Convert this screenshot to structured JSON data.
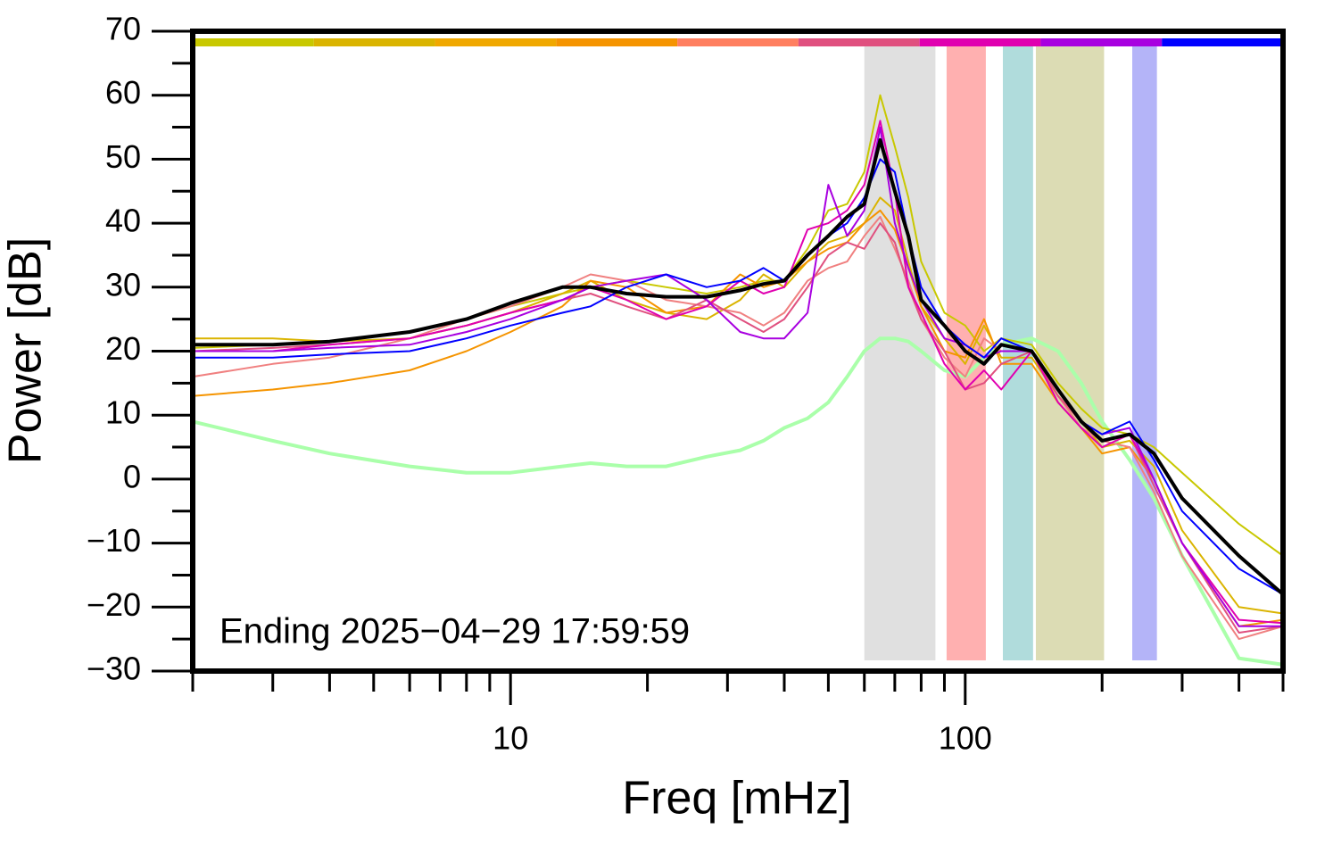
{
  "chart_data": {
    "type": "line",
    "x_label": "Freq [mHz]",
    "y_label": "Power [dB]",
    "annotation": "Ending 2025−04−29 17:59:59",
    "x_log": true,
    "xlim": [
      2,
      500
    ],
    "ylim": [
      -30,
      70
    ],
    "xticks": [
      10,
      100
    ],
    "xminor_ticks": [
      2,
      3,
      4,
      5,
      6,
      7,
      8,
      9,
      20,
      30,
      40,
      50,
      60,
      70,
      80,
      90,
      200,
      300,
      400,
      500
    ],
    "yticks": [
      -30,
      -20,
      -10,
      0,
      10,
      20,
      30,
      40,
      50,
      60,
      70
    ],
    "yminor_ticks": [
      -25,
      -15,
      -5,
      5,
      15,
      25,
      35,
      45,
      55,
      65
    ],
    "yticks_text": [
      "−30",
      "−20",
      "−10",
      "0",
      "10",
      "20",
      "30",
      "40",
      "50",
      "60",
      "70"
    ],
    "top_bar_colors": [
      "#c8c800",
      "#dab400",
      "#f0a800",
      "#f59400",
      "#ff7f60",
      "#e0507f",
      "#e000b0",
      "#a800e0",
      "#0000ff"
    ],
    "bands": [
      {
        "x": [
          60,
          86
        ],
        "color": "#e0e0e0"
      },
      {
        "x": [
          91,
          111
        ],
        "color": "#ffb0b0"
      },
      {
        "x": [
          121,
          141
        ],
        "color": "#b0dcdc"
      },
      {
        "x": [
          143,
          202
        ],
        "color": "#dcdcb4"
      },
      {
        "x": [
          233,
          264
        ],
        "color": "#b4b4f8"
      }
    ],
    "x": [
      2,
      3,
      4,
      6,
      8,
      10,
      13,
      15,
      18,
      22,
      27,
      32,
      36,
      40,
      45,
      50,
      55,
      60,
      65,
      70,
      75,
      80,
      90,
      100,
      110,
      120,
      140,
      160,
      180,
      200,
      230,
      260,
      300,
      400,
      500
    ],
    "series": [
      {
        "color": "#aaffaa",
        "width": 4,
        "values": [
          9,
          6,
          4,
          2,
          1,
          1,
          2,
          2.5,
          2,
          2,
          3.5,
          4.5,
          6,
          8,
          9.5,
          12,
          16,
          20,
          22,
          22,
          21.5,
          20,
          17,
          16,
          19,
          21,
          22,
          20,
          15,
          9,
          3,
          -3,
          -12,
          -28,
          -29
        ]
      },
      {
        "color": "#c8c800",
        "width": 2,
        "values": [
          20.5,
          21,
          21.5,
          23,
          25,
          27,
          29,
          30,
          31,
          30,
          29,
          30,
          31,
          31,
          36,
          42,
          43,
          48,
          60,
          52,
          44,
          34,
          26,
          24,
          20,
          22,
          21,
          15,
          11,
          8,
          7,
          5,
          1,
          -7,
          -12
        ]
      },
      {
        "color": "#dab400",
        "width": 2,
        "values": [
          22,
          22,
          21.5,
          22,
          24,
          26,
          29,
          31,
          28,
          26,
          25,
          28,
          32,
          30,
          34,
          37,
          38,
          40,
          44,
          42,
          34,
          27,
          22,
          18,
          24,
          19,
          19,
          13,
          9,
          5,
          6,
          2,
          -8,
          -20,
          -21
        ]
      },
      {
        "color": "#f59400",
        "width": 2,
        "values": [
          13,
          14,
          15,
          17,
          20,
          23,
          27,
          31,
          30,
          26,
          27,
          32,
          30,
          31,
          34,
          36,
          37,
          40,
          42,
          39,
          33,
          27,
          20,
          19,
          25,
          18,
          18,
          12,
          8,
          4,
          5,
          0,
          -10,
          -23,
          -22
        ]
      },
      {
        "color": "#f08080",
        "width": 2,
        "values": [
          16,
          18,
          19,
          22,
          25,
          27,
          30,
          32,
          31,
          28,
          27,
          26,
          24,
          26,
          31,
          33,
          34,
          38,
          41,
          36,
          31,
          25,
          19,
          16,
          22,
          20,
          20,
          13,
          8,
          6,
          5,
          -2,
          -12,
          -25,
          -23
        ]
      },
      {
        "color": "#e0507f",
        "width": 2,
        "values": [
          20,
          20.5,
          21,
          22,
          24,
          26,
          28,
          29,
          27,
          25,
          28,
          25,
          23,
          25,
          30,
          35,
          37,
          36,
          40,
          37,
          30,
          25,
          20,
          14,
          15,
          18,
          20,
          13,
          9,
          6,
          7,
          -1,
          -10,
          -24,
          -23
        ]
      },
      {
        "color": "#e000b0",
        "width": 2,
        "values": [
          20,
          20,
          21,
          22,
          24,
          26,
          28,
          30,
          28,
          25,
          27,
          31,
          29,
          30,
          39,
          40,
          42,
          46,
          56,
          45,
          30,
          26,
          18,
          14,
          17,
          14,
          20,
          12,
          8,
          5,
          7,
          0,
          -10,
          -22,
          -22.5
        ]
      },
      {
        "color": "#a800e0",
        "width": 2,
        "values": [
          20,
          20,
          20.5,
          21,
          23,
          25,
          28,
          30,
          31,
          32,
          28,
          23,
          22,
          22,
          26,
          46,
          38,
          42,
          55,
          40,
          33,
          28,
          22,
          21,
          19,
          20,
          20,
          14,
          9,
          7,
          8,
          0,
          -10,
          -23,
          -23
        ]
      },
      {
        "color": "#0000ff",
        "width": 2,
        "values": [
          19,
          19,
          19.5,
          20,
          22,
          24,
          26,
          27,
          30,
          32,
          30,
          31,
          33,
          31,
          35,
          38,
          40,
          44,
          50,
          48,
          38,
          30,
          24,
          21,
          19,
          22,
          20,
          14,
          9,
          7,
          9,
          3,
          -5,
          -14,
          -18
        ]
      },
      {
        "color": "#000000",
        "width": 4,
        "values": [
          21,
          21,
          21.5,
          23,
          25,
          27.5,
          30,
          30,
          29,
          28.5,
          28.5,
          29.5,
          30.5,
          31,
          35,
          38,
          41,
          43,
          53,
          45,
          38,
          28,
          24,
          20,
          18,
          21,
          20,
          14,
          9,
          6,
          7,
          4,
          -3,
          -12,
          -18
        ]
      }
    ]
  }
}
